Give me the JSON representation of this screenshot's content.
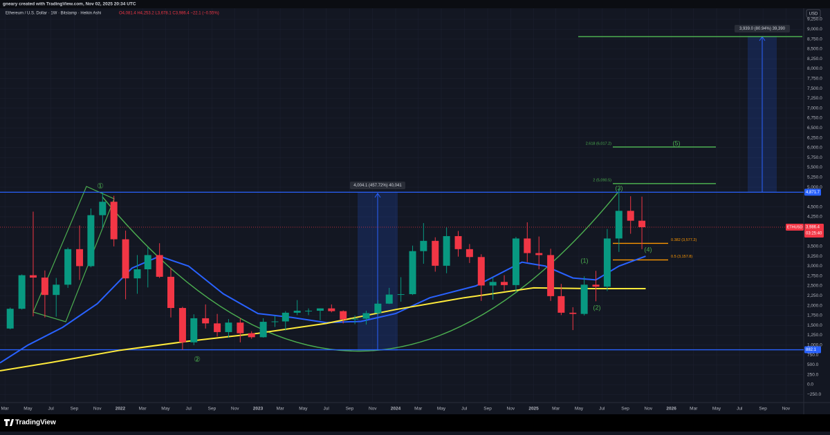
{
  "header": {
    "credit": "gneary created with TradingView.com, Nov 02, 2025 20:34 UTC",
    "symbol": "Ethereum / U.S. Dollar · 1W · Bitstamp · Heikin Ashi",
    "ohlc": "O4,081.4 H4,253.2 L3,678.1 C3,986.4 −22.1 (−0.55%)",
    "currency": "USD"
  },
  "footer": {
    "logo": "TradingView"
  },
  "chart_data": {
    "type": "candlestick",
    "xlim": [
      "2021-02-16",
      "2026-12-18"
    ],
    "ylim": [
      -454.6,
      9739.5
    ],
    "xticks": [
      {
        "value": "2021-03-01",
        "label": "Mar"
      },
      {
        "value": "2021-05-01",
        "label": "May"
      },
      {
        "value": "2021-07-01",
        "label": "Jul"
      },
      {
        "value": "2021-09-01",
        "label": "Sep"
      },
      {
        "value": "2021-11-01",
        "label": "Nov"
      },
      {
        "value": "2022-01-01",
        "label": "2022"
      },
      {
        "value": "2022-03-01",
        "label": "Mar"
      },
      {
        "value": "2022-05-01",
        "label": "May"
      },
      {
        "value": "2022-07-01",
        "label": "Jul"
      },
      {
        "value": "2022-09-01",
        "label": "Sep"
      },
      {
        "value": "2022-11-01",
        "label": "Nov"
      },
      {
        "value": "2023-01-01",
        "label": "2023"
      },
      {
        "value": "2023-03-01",
        "label": "Mar"
      },
      {
        "value": "2023-05-01",
        "label": "May"
      },
      {
        "value": "2023-07-01",
        "label": "Jul"
      },
      {
        "value": "2023-09-01",
        "label": "Sep"
      },
      {
        "value": "2023-11-01",
        "label": "Nov"
      },
      {
        "value": "2024-01-01",
        "label": "2024"
      },
      {
        "value": "2024-03-01",
        "label": "Mar"
      },
      {
        "value": "2024-05-01",
        "label": "May"
      },
      {
        "value": "2024-07-01",
        "label": "Jul"
      },
      {
        "value": "2024-09-01",
        "label": "Sep"
      },
      {
        "value": "2024-11-01",
        "label": "Nov"
      },
      {
        "value": "2025-01-01",
        "label": "2025"
      },
      {
        "value": "2025-03-01",
        "label": "Mar"
      },
      {
        "value": "2025-05-01",
        "label": "May"
      },
      {
        "value": "2025-07-01",
        "label": "Jul"
      },
      {
        "value": "2025-09-01",
        "label": "Sep"
      },
      {
        "value": "2025-11-01",
        "label": "Nov"
      },
      {
        "value": "2026-01-01",
        "label": "2026"
      },
      {
        "value": "2026-03-01",
        "label": "Mar"
      },
      {
        "value": "2026-05-01",
        "label": "May"
      },
      {
        "value": "2026-07-01",
        "label": "Jul"
      },
      {
        "value": "2026-09-01",
        "label": "Sep"
      },
      {
        "value": "2026-11-01",
        "label": "Nov"
      }
    ],
    "yticks": [
      {
        "value": 9250,
        "label": "9,250.0"
      },
      {
        "value": 9000,
        "label": "9,000.0"
      },
      {
        "value": 8750,
        "label": "8,750.0"
      },
      {
        "value": 8500,
        "label": "8,500.0"
      },
      {
        "value": 8250,
        "label": "8,250.0"
      },
      {
        "value": 8000,
        "label": "8,000.0"
      },
      {
        "value": 7750,
        "label": "7,750.0"
      },
      {
        "value": 7500,
        "label": "7,500.0"
      },
      {
        "value": 7250,
        "label": "7,250.0"
      },
      {
        "value": 7000,
        "label": "7,000.0"
      },
      {
        "value": 6750,
        "label": "6,750.0"
      },
      {
        "value": 6500,
        "label": "6,500.0"
      },
      {
        "value": 6250,
        "label": "6,250.0"
      },
      {
        "value": 6000,
        "label": "6,000.0"
      },
      {
        "value": 5750,
        "label": "5,750.0"
      },
      {
        "value": 5500,
        "label": "5,500.0"
      },
      {
        "value": 5250,
        "label": "5,250.0"
      },
      {
        "value": 5000,
        "label": "5,000.0"
      },
      {
        "value": 4500,
        "label": "4,500.0"
      },
      {
        "value": 4250,
        "label": "4,250.0"
      },
      {
        "value": 3500,
        "label": "3,500.0"
      },
      {
        "value": 3250,
        "label": "3,250.0"
      },
      {
        "value": 3000,
        "label": "3,000.0"
      },
      {
        "value": 2750,
        "label": "2,750.0"
      },
      {
        "value": 2500,
        "label": "2,500.0"
      },
      {
        "value": 2250,
        "label": "2,250.0"
      },
      {
        "value": 2000,
        "label": "2,000.0"
      },
      {
        "value": 1750,
        "label": "1,750.0"
      },
      {
        "value": 1500,
        "label": "1,500.0"
      },
      {
        "value": 1250,
        "label": "1,250.0"
      },
      {
        "value": 1000,
        "label": "1,000.0"
      },
      {
        "value": 750,
        "label": "750.0"
      },
      {
        "value": 500,
        "label": "500.0"
      },
      {
        "value": 250,
        "label": "250.0"
      },
      {
        "value": 0,
        "label": "0.0"
      },
      {
        "value": -250,
        "label": "−250.0"
      }
    ],
    "up_color": "#089981",
    "down_color": "#f23645",
    "candles": [
      {
        "date": "2021-03-15",
        "open": 1420,
        "high": 1950,
        "low": 1400,
        "close": 1920
      },
      {
        "date": "2021-04-15",
        "open": 1920,
        "high": 2790,
        "low": 1900,
        "close": 2770
      },
      {
        "date": "2021-05-15",
        "open": 2770,
        "high": 4380,
        "low": 1730,
        "close": 2710
      },
      {
        "date": "2021-06-15",
        "open": 2710,
        "high": 2890,
        "low": 1700,
        "close": 2270
      },
      {
        "date": "2021-07-15",
        "open": 2270,
        "high": 2700,
        "low": 1720,
        "close": 2530
      },
      {
        "date": "2021-08-15",
        "open": 2530,
        "high": 3470,
        "low": 2450,
        "close": 3430
      },
      {
        "date": "2021-09-15",
        "open": 3430,
        "high": 4030,
        "low": 2650,
        "close": 3000
      },
      {
        "date": "2021-10-15",
        "open": 3000,
        "high": 4460,
        "low": 2970,
        "close": 4290
      },
      {
        "date": "2021-11-15",
        "open": 4290,
        "high": 4870,
        "low": 3950,
        "close": 4630
      },
      {
        "date": "2021-12-15",
        "open": 4630,
        "high": 4780,
        "low": 3500,
        "close": 3680
      },
      {
        "date": "2022-01-15",
        "open": 3680,
        "high": 3900,
        "low": 2160,
        "close": 2690
      },
      {
        "date": "2022-02-15",
        "open": 2690,
        "high": 3280,
        "low": 2300,
        "close": 2920
      },
      {
        "date": "2022-03-15",
        "open": 2920,
        "high": 3480,
        "low": 2460,
        "close": 3280
      },
      {
        "date": "2022-04-15",
        "open": 3280,
        "high": 3580,
        "low": 2700,
        "close": 2730
      },
      {
        "date": "2022-05-15",
        "open": 2730,
        "high": 2960,
        "low": 1700,
        "close": 1940
      },
      {
        "date": "2022-06-15",
        "open": 1940,
        "high": 1970,
        "low": 880,
        "close": 1070
      },
      {
        "date": "2022-07-15",
        "open": 1070,
        "high": 1780,
        "low": 1000,
        "close": 1680
      },
      {
        "date": "2022-08-15",
        "open": 1680,
        "high": 2030,
        "low": 1420,
        "close": 1550
      },
      {
        "date": "2022-09-15",
        "open": 1550,
        "high": 1790,
        "low": 1220,
        "close": 1330
      },
      {
        "date": "2022-10-15",
        "open": 1330,
        "high": 1660,
        "low": 1190,
        "close": 1570
      },
      {
        "date": "2022-11-15",
        "open": 1570,
        "high": 1680,
        "low": 1070,
        "close": 1300
      },
      {
        "date": "2022-12-15",
        "open": 1300,
        "high": 1350,
        "low": 1160,
        "close": 1200
      },
      {
        "date": "2023-01-15",
        "open": 1200,
        "high": 1680,
        "low": 1190,
        "close": 1590
      },
      {
        "date": "2023-02-15",
        "open": 1590,
        "high": 1740,
        "low": 1460,
        "close": 1600
      },
      {
        "date": "2023-03-15",
        "open": 1600,
        "high": 1860,
        "low": 1370,
        "close": 1820
      },
      {
        "date": "2023-04-15",
        "open": 1820,
        "high": 2140,
        "low": 1760,
        "close": 1870
      },
      {
        "date": "2023-05-15",
        "open": 1870,
        "high": 1930,
        "low": 1760,
        "close": 1870
      },
      {
        "date": "2023-06-15",
        "open": 1870,
        "high": 1930,
        "low": 1630,
        "close": 1930
      },
      {
        "date": "2023-07-15",
        "open": 1930,
        "high": 2030,
        "low": 1830,
        "close": 1860
      },
      {
        "date": "2023-08-15",
        "open": 1860,
        "high": 1880,
        "low": 1550,
        "close": 1650
      },
      {
        "date": "2023-09-15",
        "open": 1650,
        "high": 1750,
        "low": 1530,
        "close": 1670
      },
      {
        "date": "2023-10-15",
        "open": 1670,
        "high": 1870,
        "low": 1520,
        "close": 1810
      },
      {
        "date": "2023-11-15",
        "open": 1810,
        "high": 2140,
        "low": 1770,
        "close": 2050
      },
      {
        "date": "2023-12-15",
        "open": 2050,
        "high": 2450,
        "low": 2040,
        "close": 2280
      },
      {
        "date": "2024-01-15",
        "open": 2280,
        "high": 2720,
        "low": 2100,
        "close": 2290
      },
      {
        "date": "2024-02-15",
        "open": 2290,
        "high": 3520,
        "low": 2270,
        "close": 3380
      },
      {
        "date": "2024-03-15",
        "open": 3380,
        "high": 4090,
        "low": 3060,
        "close": 3640
      },
      {
        "date": "2024-04-15",
        "open": 3640,
        "high": 3730,
        "low": 2860,
        "close": 3010
      },
      {
        "date": "2024-05-15",
        "open": 3010,
        "high": 3980,
        "low": 2820,
        "close": 3760
      },
      {
        "date": "2024-06-15",
        "open": 3760,
        "high": 3890,
        "low": 3240,
        "close": 3430
      },
      {
        "date": "2024-07-15",
        "open": 3430,
        "high": 3560,
        "low": 3080,
        "close": 3230
      },
      {
        "date": "2024-08-15",
        "open": 3230,
        "high": 3300,
        "low": 2120,
        "close": 2510
      },
      {
        "date": "2024-09-15",
        "open": 2510,
        "high": 2720,
        "low": 2150,
        "close": 2600
      },
      {
        "date": "2024-10-15",
        "open": 2600,
        "high": 2770,
        "low": 2380,
        "close": 2520
      },
      {
        "date": "2024-11-15",
        "open": 2520,
        "high": 3740,
        "low": 2360,
        "close": 3700
      },
      {
        "date": "2024-12-15",
        "open": 3700,
        "high": 4110,
        "low": 3100,
        "close": 3330
      },
      {
        "date": "2025-01-15",
        "open": 3330,
        "high": 3750,
        "low": 2920,
        "close": 3280
      },
      {
        "date": "2025-02-15",
        "open": 3280,
        "high": 3440,
        "low": 2120,
        "close": 2240
      },
      {
        "date": "2025-03-15",
        "open": 2240,
        "high": 2550,
        "low": 1760,
        "close": 1820
      },
      {
        "date": "2025-04-15",
        "open": 1820,
        "high": 1960,
        "low": 1380,
        "close": 1790
      },
      {
        "date": "2025-05-15",
        "open": 1790,
        "high": 2740,
        "low": 1750,
        "close": 2530
      },
      {
        "date": "2025-06-15",
        "open": 2530,
        "high": 2880,
        "low": 2110,
        "close": 2480
      },
      {
        "date": "2025-07-15",
        "open": 2480,
        "high": 3940,
        "low": 2370,
        "close": 3700
      },
      {
        "date": "2025-08-15",
        "open": 3700,
        "high": 4960,
        "low": 3360,
        "close": 4400
      },
      {
        "date": "2025-09-15",
        "open": 4400,
        "high": 4770,
        "low": 3820,
        "close": 4150
      },
      {
        "date": "2025-10-15",
        "open": 4150,
        "high": 4760,
        "low": 3430,
        "close": 3986.4
      }
    ],
    "moving_averages": [
      {
        "color": "#2962ff",
        "x": [
          "2021-02-16",
          "2021-05-01",
          "2021-08-01",
          "2021-11-01",
          "2022-02-01",
          "2022-04-15",
          "2022-07-01",
          "2022-10-01",
          "2023-01-01",
          "2023-04-01",
          "2023-07-01",
          "2023-10-01",
          "2024-01-01",
          "2024-04-01",
          "2024-08-01",
          "2024-12-01",
          "2025-02-01",
          "2025-04-15",
          "2025-06-15",
          "2025-08-15",
          "2025-10-25"
        ],
        "values": [
          550,
          1000,
          1450,
          2050,
          2950,
          3250,
          3000,
          2300,
          1800,
          1700,
          1570,
          1600,
          1800,
          2200,
          2500,
          3100,
          3000,
          2700,
          2650,
          3000,
          3250
        ]
      },
      {
        "color": "#ffeb3b",
        "x": [
          "2021-02-16",
          "2021-07-01",
          "2022-01-01",
          "2022-07-01",
          "2023-01-01",
          "2023-07-01",
          "2024-01-01",
          "2024-07-01",
          "2025-01-01",
          "2025-06-01",
          "2025-10-25"
        ],
        "values": [
          350,
          560,
          870,
          1100,
          1300,
          1550,
          1900,
          2200,
          2450,
          2430,
          2430
        ]
      }
    ],
    "price_line": {
      "value": 3986.4,
      "color": "#f23645",
      "labels": [
        "ETHUSD",
        "3,986.4",
        "03:25:40"
      ]
    },
    "levels": [
      {
        "value": 4871.7,
        "label": "4,871.7",
        "color": "#2962ff"
      },
      {
        "value": 882.1,
        "label": "882.1",
        "color": "#2962ff"
      }
    ],
    "fib_levels": [
      {
        "value": 6017.2,
        "label": "2.618 (6,017.2)",
        "color": "#4caf50"
      },
      {
        "value": 5090.5,
        "label": "2 (5,090.5)",
        "color": "#4caf50"
      },
      {
        "value": 3577.2,
        "label": "0.382 (3,577.2)",
        "color": "#ff9800"
      },
      {
        "value": 3157.8,
        "label": "0.5 (3,157.8)",
        "color": "#ff9800"
      }
    ],
    "measures": [
      "4,004.1 (457.72%) 40,041",
      "3,939.0 (80.94%) 39,390"
    ],
    "wave_labels": [
      "①",
      "②",
      "(1)",
      "(2)",
      "(3)",
      "(4)",
      "(5)"
    ]
  }
}
